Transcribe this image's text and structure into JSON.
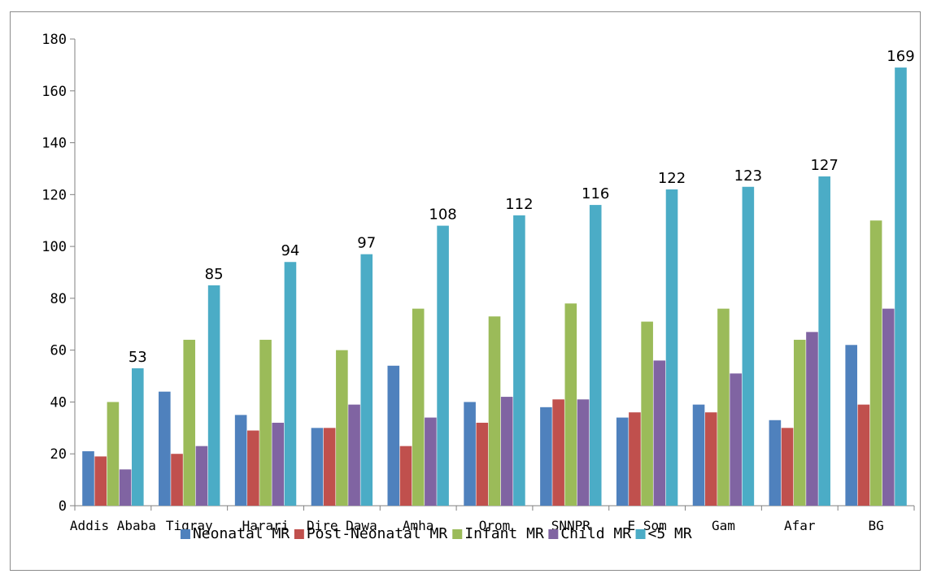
{
  "chart_data": {
    "type": "bar",
    "title": "",
    "xlabel": "",
    "ylabel": "",
    "ylim": [
      0,
      180
    ],
    "yticks": [
      0,
      20,
      40,
      60,
      80,
      100,
      120,
      140,
      160,
      180
    ],
    "grid": false,
    "legend_position": "bottom",
    "categories": [
      "Addis Ababa",
      "Tigray",
      "Harari",
      "Dire Dawa",
      "Amha",
      "Orom",
      "SNNPR",
      "E Som",
      "Gam",
      "Afar",
      "BG"
    ],
    "series": [
      {
        "name": "Neonatal MR",
        "color": "#4F81BD",
        "values": [
          21,
          44,
          35,
          30,
          54,
          40,
          38,
          34,
          39,
          33,
          62
        ]
      },
      {
        "name": "Post-Neonatal MR",
        "color": "#C0504D",
        "values": [
          19,
          20,
          29,
          30,
          23,
          32,
          41,
          36,
          36,
          30,
          39
        ]
      },
      {
        "name": "Infant MR",
        "color": "#9BBB59",
        "values": [
          40,
          64,
          64,
          60,
          76,
          73,
          78,
          71,
          76,
          64,
          110
        ]
      },
      {
        "name": "Child MR",
        "color": "#8064A2",
        "values": [
          14,
          23,
          32,
          39,
          34,
          42,
          41,
          56,
          51,
          67,
          76
        ]
      },
      {
        "name": "<5 MR",
        "color": "#4BACC6",
        "values": [
          53,
          85,
          94,
          97,
          108,
          112,
          116,
          122,
          123,
          127,
          169
        ]
      }
    ],
    "data_labels_series": "<5 MR"
  }
}
